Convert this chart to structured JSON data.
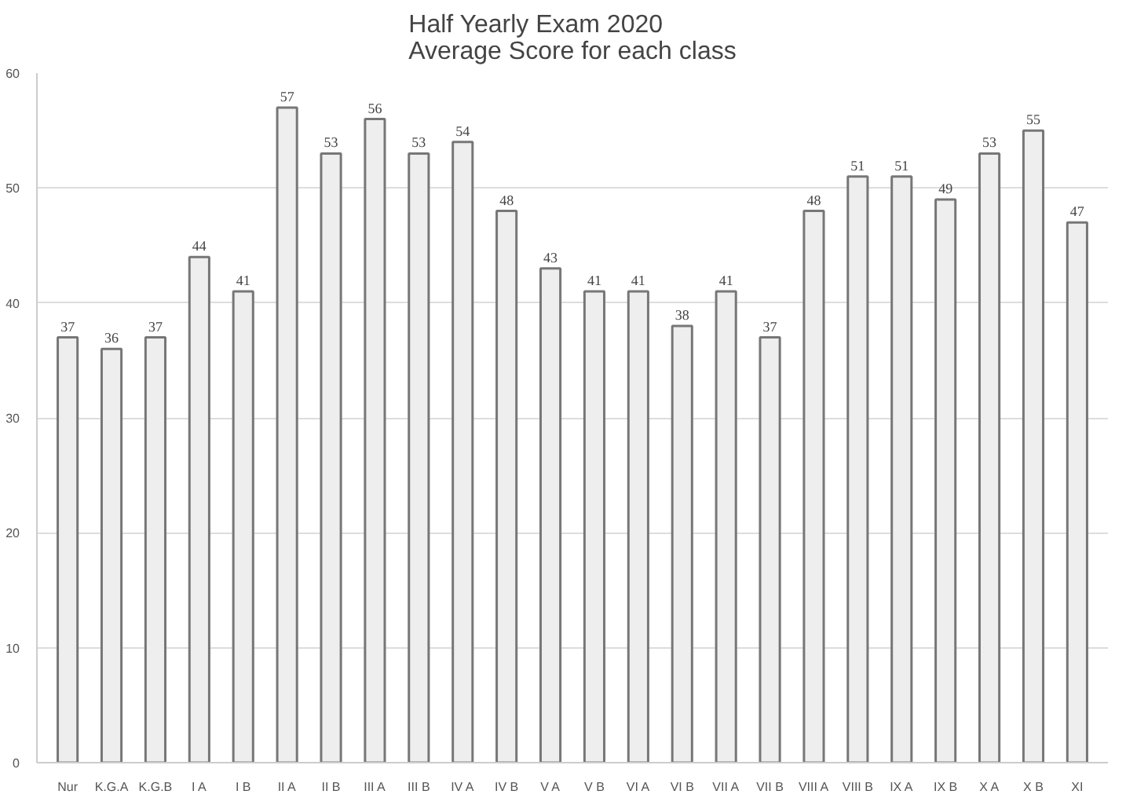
{
  "chart_data": {
    "type": "bar",
    "title": "Half Yearly Exam 2020\nAverage Score for each class",
    "categories": [
      "Nur",
      "K.G.A",
      "K.G.B",
      "I A",
      "I B",
      "II A",
      "II B",
      "III A",
      "III B",
      "IV A",
      "IV B",
      "V A",
      "V B",
      "VI A",
      "VI B",
      "VII A",
      "VII B",
      "VIII A",
      "VIII B",
      "IX A",
      "IX B",
      "X A",
      "X B",
      "XI"
    ],
    "values": [
      37,
      36,
      37,
      44,
      41,
      57,
      53,
      56,
      53,
      54,
      48,
      43,
      41,
      41,
      38,
      41,
      37,
      48,
      51,
      51,
      49,
      53,
      55,
      47
    ],
    "color": "#eeeeee",
    "ylim": [
      0,
      60
    ],
    "yticks": [
      0,
      10,
      20,
      30,
      40,
      50,
      60
    ],
    "grid": "y",
    "data_labels": true
  }
}
